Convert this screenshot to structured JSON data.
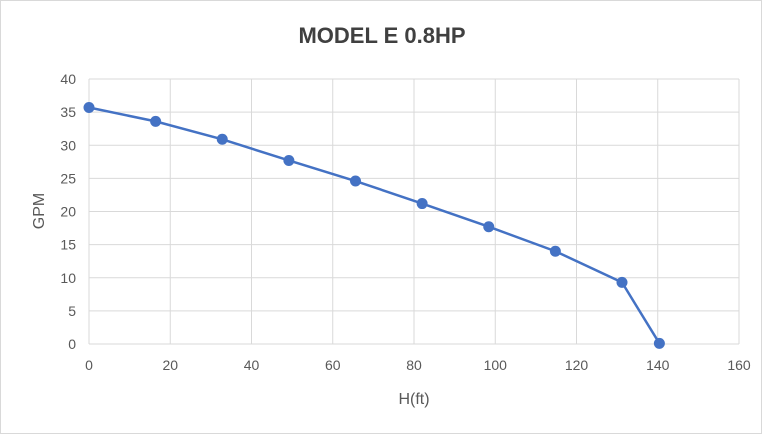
{
  "chart_data": {
    "type": "line",
    "title": "MODEL E 0.8HP",
    "xlabel": "H(ft)",
    "ylabel": "GPM",
    "xlim": [
      0,
      160
    ],
    "ylim": [
      0,
      40
    ],
    "xticks": [
      0,
      20,
      40,
      60,
      80,
      100,
      120,
      140,
      160
    ],
    "yticks": [
      0,
      5,
      10,
      15,
      20,
      25,
      30,
      35,
      40
    ],
    "grid": true,
    "legend": "none",
    "markers": true,
    "color": "#4472c4",
    "x": [
      0,
      16.4,
      32.8,
      49.2,
      65.6,
      82.0,
      98.4,
      114.8,
      131.2,
      140.4
    ],
    "y": [
      35.7,
      33.6,
      30.9,
      27.7,
      24.6,
      21.2,
      17.7,
      14.0,
      9.3,
      0.1
    ]
  }
}
